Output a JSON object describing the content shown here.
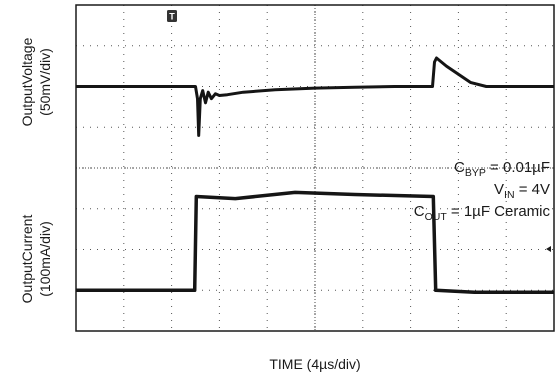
{
  "chart_data": {
    "type": "line",
    "title": "",
    "xlabel": "TIME (4µs/div)",
    "x_divisions": 10,
    "trigger_marker": "T",
    "panels": [
      {
        "ylabel_line1": "OutputVoltage",
        "ylabel_line2": "(50mV/div)",
        "unit": "mV",
        "ylim": [
          -75,
          75
        ],
        "series": [
          {
            "x": [
              0,
              3.0,
              3.05,
              3.08,
              3.12,
              3.18,
              3.25,
              3.32,
              3.4,
              3.5,
              3.6,
              3.8,
              4.2,
              5.0,
              6.0,
              7.0,
              8.0,
              8.95,
              9.0,
              9.05,
              9.3,
              9.6,
              9.9,
              10.3,
              10.6,
              12.0
            ],
            "y": [
              0,
              0,
              -15,
              -60,
              -15,
              -5,
              -20,
              -7,
              -15,
              -9,
              -11,
              -10,
              -7,
              -4,
              -2,
              -1,
              0,
              0,
              30,
              35,
              25,
              15,
              5,
              0,
              0,
              0
            ]
          }
        ]
      },
      {
        "ylabel_line1": "OutputCurrent",
        "ylabel_line2": "(100mA/div)",
        "unit": "mA",
        "ylim": [
          0,
          400
        ],
        "series": [
          {
            "x": [
              0,
              2.98,
              3.02,
              4.0,
              5.5,
              7.0,
              8.97,
              9.03,
              10.0,
              12.0
            ],
            "y": [
              0,
              0,
              230,
              225,
              240,
              235,
              230,
              0,
              -5,
              -5
            ]
          }
        ]
      }
    ],
    "annotations": [
      {
        "base": "C",
        "sub": "BYP",
        "rest": " = 0.01µF"
      },
      {
        "base": "V",
        "sub": "IN",
        "rest": " = 4V"
      },
      {
        "base": "C",
        "sub": "OUT",
        "rest": " = 1µF Ceramic"
      }
    ],
    "grid": true
  }
}
